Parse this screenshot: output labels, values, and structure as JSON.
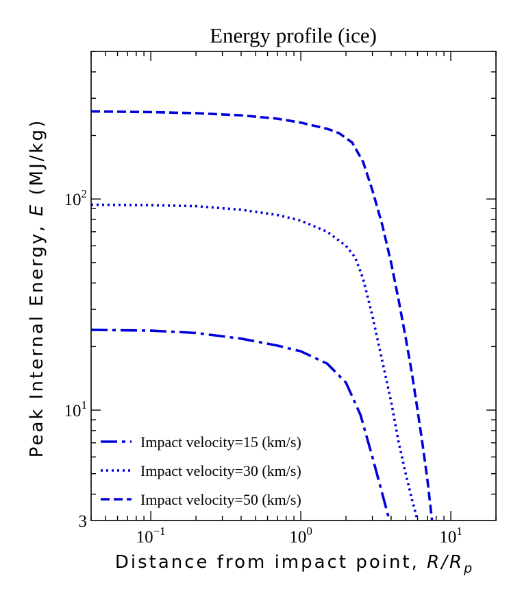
{
  "chart_data": {
    "type": "line",
    "title": "Energy profile (ice)",
    "xlabel_text": "Distance from impact point, ",
    "xlabel_var": "R/R",
    "xlabel_sub": "p",
    "ylabel_text": "Peak Internal Energy, ",
    "ylabel_var": "E",
    "ylabel_unit": " (MJ/kg)",
    "x_scale": "log",
    "y_scale": "log",
    "xlim": [
      0.04,
      20
    ],
    "ylim": [
      3,
      500
    ],
    "x_ticks": [
      {
        "value": 0.1,
        "base": "10",
        "exp": "−1"
      },
      {
        "value": 1,
        "base": "10",
        "exp": "0"
      },
      {
        "value": 10,
        "base": "10",
        "exp": "1"
      }
    ],
    "y_ticks": [
      {
        "value": 3,
        "label": "3"
      },
      {
        "value": 10,
        "base": "10",
        "exp": "1"
      },
      {
        "value": 100,
        "base": "10",
        "exp": "2"
      }
    ],
    "grid": false,
    "legend_position": "bottom-left",
    "color": "#0000dd",
    "series": [
      {
        "name": "Impact velocity=15 (km/s)",
        "style": "dashdot",
        "points": [
          [
            0.04,
            24
          ],
          [
            0.1,
            23.8
          ],
          [
            0.2,
            23.2
          ],
          [
            0.4,
            21.8
          ],
          [
            0.7,
            20.2
          ],
          [
            1.0,
            19.0
          ],
          [
            1.5,
            16.6
          ],
          [
            2.0,
            13.5
          ],
          [
            2.5,
            9.5
          ],
          [
            3.0,
            6.0
          ],
          [
            3.5,
            4.0
          ],
          [
            3.9,
            3.0
          ]
        ]
      },
      {
        "name": "Impact velocity=30 (km/s)",
        "style": "dotted",
        "points": [
          [
            0.04,
            94
          ],
          [
            0.1,
            93.5
          ],
          [
            0.2,
            92.5
          ],
          [
            0.4,
            89
          ],
          [
            0.7,
            84
          ],
          [
            1.0,
            79
          ],
          [
            1.5,
            70
          ],
          [
            2.0,
            60
          ],
          [
            2.3,
            53
          ],
          [
            2.6,
            42
          ],
          [
            3.0,
            28
          ],
          [
            3.5,
            17
          ],
          [
            4.0,
            11
          ],
          [
            4.5,
            7
          ],
          [
            5.0,
            5
          ],
          [
            5.5,
            3.8
          ],
          [
            6.0,
            3.0
          ]
        ]
      },
      {
        "name": "Impact velocity=50 (km/s)",
        "style": "dashed",
        "points": [
          [
            0.04,
            260
          ],
          [
            0.1,
            258
          ],
          [
            0.2,
            255
          ],
          [
            0.4,
            249
          ],
          [
            0.7,
            240
          ],
          [
            1.0,
            230
          ],
          [
            1.5,
            215
          ],
          [
            1.8,
            205
          ],
          [
            2.2,
            185
          ],
          [
            2.6,
            150
          ],
          [
            3.0,
            110
          ],
          [
            3.5,
            75
          ],
          [
            4.0,
            50
          ],
          [
            4.5,
            33
          ],
          [
            5.0,
            22
          ],
          [
            5.5,
            15
          ],
          [
            6.0,
            10
          ],
          [
            6.5,
            6.8
          ],
          [
            7.0,
            4.6
          ],
          [
            7.5,
            3.0
          ]
        ]
      }
    ]
  }
}
